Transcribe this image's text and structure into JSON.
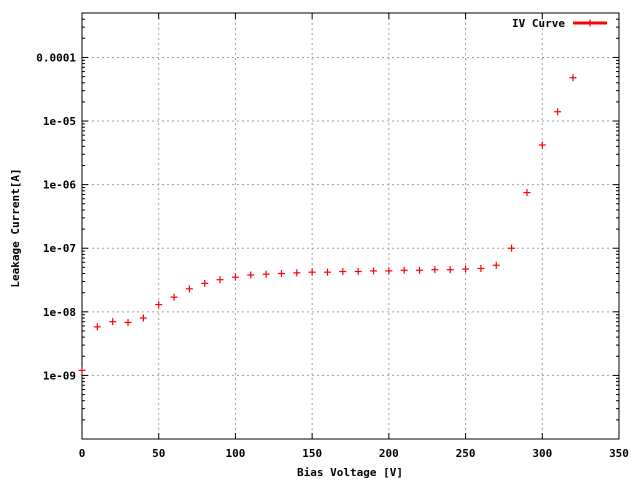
{
  "chart_data": {
    "type": "scatter",
    "title": "",
    "xlabel": "Bias Voltage [V]",
    "ylabel": "Leakage Current[A]",
    "xlim": [
      0,
      350
    ],
    "ylim": [
      1e-10,
      0.0005
    ],
    "yscale": "log",
    "grid": true,
    "legend_position": "top-right",
    "x_ticks": [
      0,
      50,
      100,
      150,
      200,
      250,
      300,
      350
    ],
    "x_tick_labels": [
      "0",
      "50",
      "100",
      "150",
      "200",
      "250",
      "300",
      "350"
    ],
    "y_ticks": [
      1e-09,
      1e-08,
      1e-07,
      1e-06,
      1e-05,
      0.0001
    ],
    "y_tick_labels": [
      "1e-09",
      "1e-08",
      "1e-07",
      "1e-06",
      "1e-05",
      "0.0001"
    ],
    "series": [
      {
        "name": "IV Curve",
        "color": "#ff0000",
        "marker": "plus",
        "x": [
          0,
          10,
          20,
          30,
          40,
          50,
          60,
          70,
          80,
          90,
          100,
          110,
          120,
          130,
          140,
          150,
          160,
          170,
          180,
          190,
          200,
          210,
          220,
          230,
          240,
          250,
          260,
          270,
          280,
          290,
          300,
          310,
          320
        ],
        "y": [
          1.2e-09,
          5.8e-09,
          7e-09,
          6.8e-09,
          8e-09,
          1.3e-08,
          1.7e-08,
          2.3e-08,
          2.8e-08,
          3.2e-08,
          3.5e-08,
          3.8e-08,
          3.9e-08,
          4e-08,
          4.1e-08,
          4.2e-08,
          4.2e-08,
          4.3e-08,
          4.3e-08,
          4.4e-08,
          4.4e-08,
          4.5e-08,
          4.5e-08,
          4.6e-08,
          4.6e-08,
          4.7e-08,
          4.8e-08,
          5.4e-08,
          1e-07,
          7.5e-07,
          4.2e-06,
          1.4e-05,
          4.8e-05
        ]
      }
    ]
  }
}
